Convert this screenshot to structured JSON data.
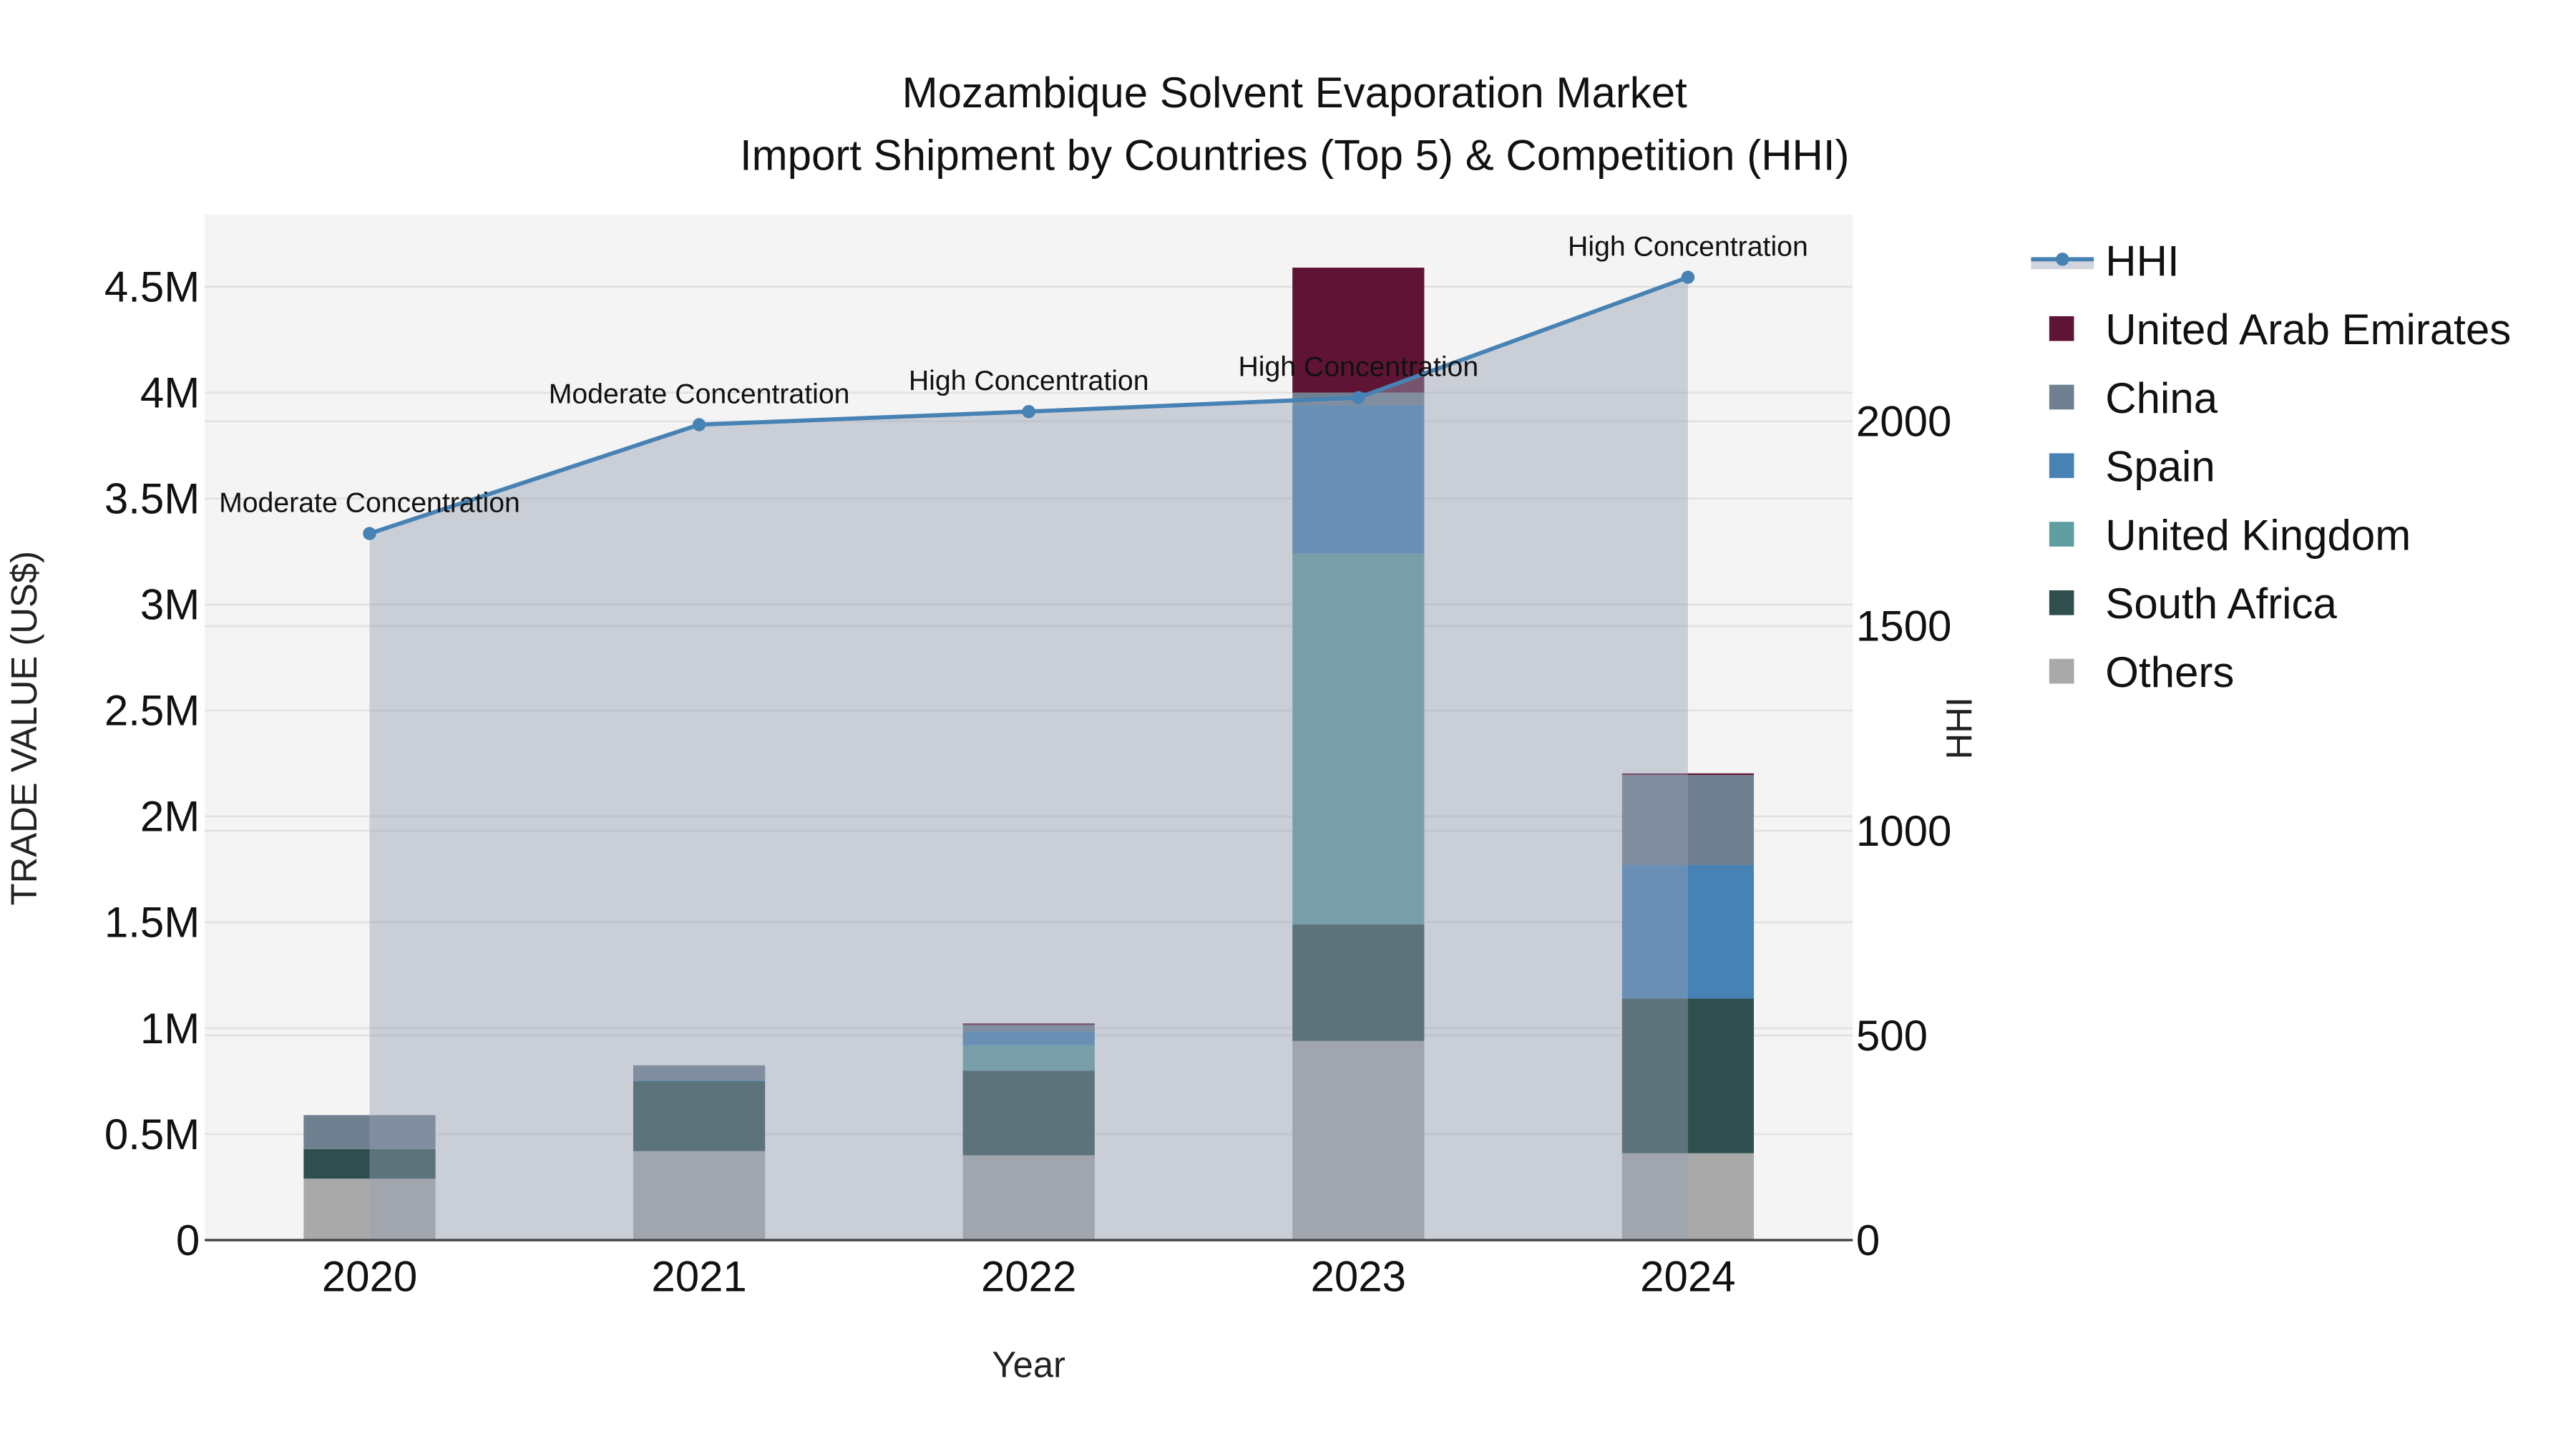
{
  "chart_data": {
    "type": "bar",
    "title_line1": "Mozambique Solvent Evaporation Market",
    "title_line2": "Import Shipment by Countries (Top 5) & Competition (HHI)",
    "xlabel": "Year",
    "ylabel": "TRADE VALUE (US$)",
    "y2label": "HHI",
    "categories": [
      "2020",
      "2021",
      "2022",
      "2023",
      "2024"
    ],
    "ylim": [
      0,
      4840000
    ],
    "y2lim": [
      0,
      2505
    ],
    "yticks": [
      {
        "value": 0,
        "label": "0"
      },
      {
        "value": 500000,
        "label": "0.5M"
      },
      {
        "value": 1000000,
        "label": "1M"
      },
      {
        "value": 1500000,
        "label": "1.5M"
      },
      {
        "value": 2000000,
        "label": "2M"
      },
      {
        "value": 2500000,
        "label": "2.5M"
      },
      {
        "value": 3000000,
        "label": "3M"
      },
      {
        "value": 3500000,
        "label": "3.5M"
      },
      {
        "value": 4000000,
        "label": "4M"
      },
      {
        "value": 4500000,
        "label": "4.5M"
      }
    ],
    "y2ticks": [
      {
        "value": 0,
        "label": "0"
      },
      {
        "value": 500,
        "label": "500"
      },
      {
        "value": 1000,
        "label": "1000"
      },
      {
        "value": 1500,
        "label": "1500"
      },
      {
        "value": 2000,
        "label": "2000"
      }
    ],
    "series": [
      {
        "name": "Others",
        "color": "#a9a9a9",
        "values": [
          290000,
          420000,
          400000,
          940000,
          410000
        ]
      },
      {
        "name": "South Africa",
        "color": "#2f4f4f",
        "values": [
          140000,
          330000,
          400000,
          550000,
          730000
        ]
      },
      {
        "name": "United Kingdom",
        "color": "#5f9ea0",
        "values": [
          0,
          0,
          120000,
          1750000,
          0
        ]
      },
      {
        "name": "Spain",
        "color": "#4682b4",
        "values": [
          0,
          5000,
          65000,
          700000,
          630000
        ]
      },
      {
        "name": "China",
        "color": "#708090",
        "values": [
          160000,
          70000,
          30000,
          60000,
          425000
        ]
      },
      {
        "name": "United Arab Emirates",
        "color": "#5f1435",
        "values": [
          0,
          0,
          8000,
          590000,
          8000
        ]
      }
    ],
    "hhi": {
      "name": "HHI",
      "color": "#4682b4",
      "values": [
        1726,
        1992,
        2024,
        2058,
        2352
      ],
      "labels": [
        "Moderate Concentration",
        "Moderate Concentration",
        "High Concentration",
        "High Concentration",
        "High Concentration"
      ]
    },
    "legend_order": [
      "HHI",
      "United Arab Emirates",
      "China",
      "Spain",
      "United Kingdom",
      "South Africa",
      "Others"
    ],
    "legend_placement": "right",
    "grid": true
  }
}
